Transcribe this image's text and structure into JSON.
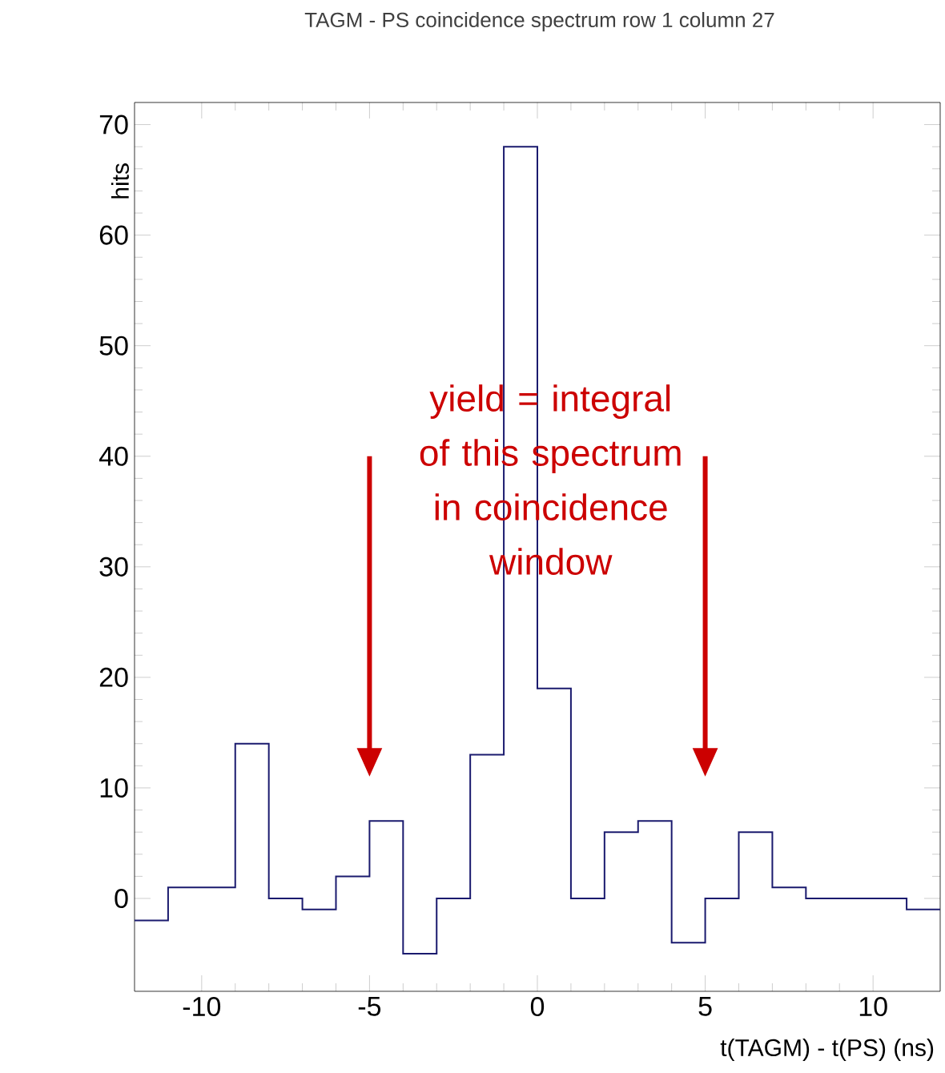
{
  "chart_data": {
    "type": "histogram",
    "title": "TAGM - PS coincidence spectrum row 1 column 27",
    "xlabel": "t(TAGM) - t(PS) (ns)",
    "ylabel": "hits",
    "bins": [
      -12,
      -11,
      -10,
      -9,
      -8,
      -7,
      -6,
      -5,
      -4,
      -3,
      -2,
      -1,
      0,
      1,
      2,
      3,
      4,
      5,
      6,
      7,
      8,
      9,
      10,
      11,
      12
    ],
    "values": [
      -2,
      1,
      1,
      14,
      0,
      -1,
      2,
      7,
      -5,
      0,
      13,
      68,
      19,
      0,
      6,
      7,
      -4,
      0,
      6,
      1,
      0,
      0,
      0,
      -1
    ],
    "color": "#1a1a6e",
    "xlim": [
      -12,
      12
    ],
    "ylim": [
      -8.4,
      72
    ],
    "xticks": [
      -10,
      -5,
      0,
      5,
      10
    ],
    "yticks": [
      0,
      10,
      20,
      30,
      40,
      50,
      60,
      70
    ],
    "annotations": [
      "yield = integral of this spectrum in coincidence window"
    ],
    "grid": false
  }
}
